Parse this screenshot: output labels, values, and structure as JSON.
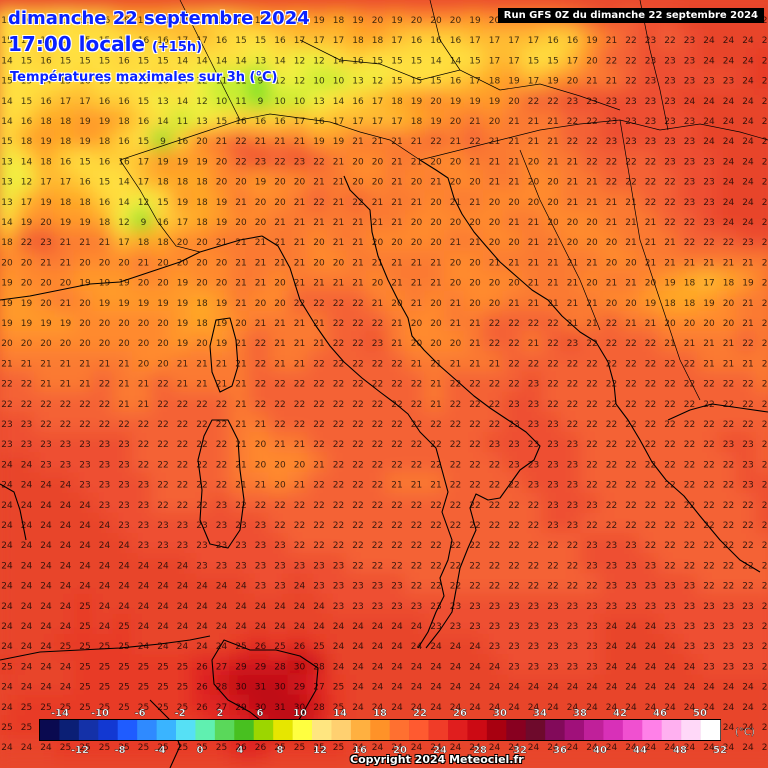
{
  "header": {
    "date_title": "dimanche 22 septembre 2024",
    "time_title": "17:00 locale",
    "lead_time": "(+15h)",
    "variable_title": "Températures maximales sur 3h (°C)",
    "run_info": "Run GFS 0Z du dimanche 22 septembre 2024"
  },
  "legend": {
    "unit": "(°C)",
    "top_labels": [
      "-14",
      "-10",
      "-6",
      "-2",
      "2",
      "6",
      "10",
      "14",
      "18",
      "22",
      "26",
      "30",
      "34",
      "38",
      "42",
      "46",
      "50"
    ],
    "bottom_labels": [
      "-12",
      "-8",
      "-4",
      "0",
      "4",
      "8",
      "12",
      "16",
      "20",
      "24",
      "28",
      "32",
      "36",
      "40",
      "44",
      "48",
      "52"
    ],
    "colors": [
      "#0a0a50",
      "#0b1f75",
      "#1431a8",
      "#1238d2",
      "#1f5cff",
      "#2f8aff",
      "#3ab4ff",
      "#56e0f5",
      "#60f0b0",
      "#5ad85a",
      "#48c020",
      "#9cd600",
      "#e6e600",
      "#ffff40",
      "#ffe680",
      "#ffd070",
      "#ffb040",
      "#ff9228",
      "#ff7030",
      "#ff5a30",
      "#f03c28",
      "#e01e1e",
      "#cc0a14",
      "#a80010",
      "#880020",
      "#6e0a2c",
      "#820a5a",
      "#a0107a",
      "#c0209a",
      "#d830b8",
      "#f050d0",
      "#ff80e8",
      "#ffb0f0",
      "#ffd8f8",
      "#ffffff"
    ]
  },
  "footer": {
    "copyright": "Copyright 2024 Meteociel.fr"
  },
  "grid": {
    "rows": [
      "15 16 16 15 16 16 18 18 18 17 17 16 17 18 19 18 19 18 19 20 19 20 20 20 19 20 20 20 20 21 22 23 22 23 23 24 24 24 24 24",
      "15 15 16 15 15 15 15 16 16 17 17 16 15 15 16 17 17 17 18 18 17 16 16 16 17 17 17 17 16 16 19 21 22 23 22 23 24 24 24 24",
      "14 15 16 15 15 15 16 15 15 14 14 14 14 13 14 12 12 14 16 15 15 15 14 14 15 17 17 15 15 17 20 22 22 23 23 23 24 24 24 25",
      "15 15 14 15 16 15 15 15 16 14 12 11 11 9 12 12 10 10 13 12 15 15 15 16 17 18 19 17 19 20 21 21 22 23 23 23 23 23 24 25",
      "14 15 16 17 17 16 16 15 13 14 12 10 11 9 10 10 13 14 16 17 18 19 20 19 19 19 20 22 22 23 23 23 23 23 23 24 24 24 24 24",
      "14 16 18 18 19 19 18 16 14 11 13 15 16 16 16 17 16 17 17 17 17 18 19 20 21 20 21 21 21 22 22 23 23 23 23 23 24 24 24 24",
      "15 18 19 18 19 18 16 15 9 16 20 21 22 21 21 21 19 19 21 21 21 21 22 21 22 21 21 21 21 22 22 23 23 23 23 23 24 24 24 24",
      "13 14 18 16 15 16 16 17 19 19 19 20 22 23 22 23 22 21 20 20 21 21 20 20 21 21 21 20 21 21 22 22 22 22 23 23 23 24 24 24",
      "13 12 17 17 16 15 14 17 18 18 18 20 20 19 20 20 21 21 20 20 21 20 21 20 20 21 21 20 20 21 21 22 22 22 22 23 23 24 24 24",
      "13 17 19 18 18 16 14 12 15 19 18 19 21 20 20 21 22 21 22 21 21 21 20 21 21 20 20 20 20 21 21 21 21 22 22 23 23 24 24 24",
      "14 19 20 19 19 18 12 9 16 17 18 19 20 20 21 21 21 21 21 21 21 20 20 20 20 20 21 21 20 20 20 21 21 21 22 22 23 24 24 24",
      "18 22 23 21 21 21 17 18 18 20 20 21 21 21 21 21 20 21 21 20 20 20 20 21 21 20 20 21 21 20 20 20 21 21 21 22 22 22 23 23",
      "20 20 21 21 20 20 20 21 20 20 20 20 21 21 21 21 20 20 21 21 21 21 21 20 20 21 21 21 21 21 21 20 20 21 21 21 21 21 21 21",
      "19 20 20 20 19 19 19 20 20 19 20 20 21 21 20 21 21 21 21 20 21 21 21 20 20 20 20 21 21 21 20 21 21 20 19 18 17 18 19 21",
      "19 19 20 21 20 19 19 19 19 19 18 19 21 20 20 22 22 22 22 21 20 21 20 21 20 20 21 21 21 21 21 20 20 19 18 18 19 20 21 21",
      "19 19 19 19 20 20 20 20 20 19 18 19 20 21 21 21 21 22 22 22 21 20 20 21 21 22 22 22 22 21 21 22 21 21 20 20 20 20 21 21",
      "20 20 20 20 20 20 20 20 20 19 20 19 21 22 21 21 21 22 22 23 21 20 20 20 21 22 22 21 22 23 22 22 22 22 21 21 21 21 22 21",
      "21 21 21 21 21 21 21 20 20 21 21 21 21 22 21 21 22 22 22 22 22 21 21 21 21 21 22 22 22 22 22 22 22 22 22 22 21 21 21 21",
      "22 22 21 21 21 22 21 21 22 21 21 21 21 22 22 22 22 22 22 22 22 22 21 22 22 22 22 23 22 22 22 22 22 22 22 22 22 22 22 21",
      "22 22 22 22 22 22 21 21 22 22 22 22 21 22 22 22 22 22 22 22 22 22 21 22 22 22 23 23 22 22 22 22 22 22 22 22 22 22 22 22",
      "23 23 22 22 22 22 22 22 22 22 22 22 21 21 22 22 22 22 22 22 22 22 22 22 22 22 23 23 23 22 22 22 22 22 22 22 22 22 22 22",
      "23 23 23 23 23 23 23 22 22 22 22 22 21 20 21 21 22 22 22 22 22 22 22 22 22 23 23 23 23 23 22 22 22 22 22 22 22 23 23 22",
      "24 24 23 23 23 23 23 22 22 22 22 22 21 20 20 20 21 22 22 22 22 22 22 22 22 22 23 23 23 23 22 22 22 22 22 22 22 22 23 22",
      "24 24 24 24 23 23 23 23 22 22 22 22 21 21 20 21 22 22 22 22 21 21 21 22 22 22 22 23 23 23 22 22 22 22 22 22 22 22 23 23",
      "24 24 24 24 24 23 23 23 22 22 22 23 22 22 22 22 22 22 22 22 22 22 22 22 22 22 22 22 23 23 23 22 22 22 22 22 22 22 22 23",
      "24 24 24 24 24 24 23 23 23 23 23 23 23 23 22 22 22 22 22 22 22 22 22 22 22 22 22 22 23 23 22 22 22 22 22 22 22 22 22 23",
      "24 24 24 24 24 24 24 23 23 23 23 23 23 23 23 22 22 22 22 22 22 22 22 22 22 22 22 22 22 22 23 23 23 22 22 22 22 22 22 22",
      "24 24 24 24 24 24 24 24 24 24 23 23 23 23 23 23 23 23 22 22 22 22 22 22 22 22 22 22 22 22 23 23 23 23 22 22 22 22 22 22",
      "24 24 24 24 24 24 24 24 24 24 24 24 24 23 23 24 23 23 23 23 23 22 22 22 22 22 22 22 22 22 22 23 23 23 23 23 22 22 22 22",
      "24 24 24 24 25 24 24 24 24 24 24 24 24 24 24 24 24 23 23 23 23 23 23 23 23 23 23 23 23 23 23 23 23 23 23 23 23 23 23 23",
      "24 24 24 24 25 24 25 24 24 24 24 24 24 24 24 24 24 24 24 24 24 24 23 23 23 23 23 23 23 23 23 24 24 24 23 23 23 23 23 23",
      "24 24 24 25 25 25 25 24 24 24 24 24 25 26 25 26 25 24 24 24 24 24 24 24 24 23 23 23 23 23 23 24 24 24 24 23 23 23 23 23",
      "25 24 24 24 25 25 25 25 25 25 26 27 29 29 28 30 28 24 24 24 24 24 24 24 24 24 23 23 23 23 23 24 24 24 24 24 23 23 23 23",
      "24 24 24 24 25 25 25 25 25 25 26 28 30 31 30 29 27 25 24 24 24 24 24 24 24 24 24 24 24 24 24 24 24 24 24 24 24 24 24 24",
      "24 25 25 25 25 25 25 25 25 25 26 27 29 30 31 30 28 25 24 24 24 24 24 24 24 24 24 24 24 24 24 24 24 24 24 24 24 24 24 24",
      "25 25 25 25 25 25 25 25 25 25 25 26 27 28 32 32 26 25 24 24 24 24 24 24 24 24 24 24 24 24 24 24 24 24 24 24 24 24 24 24",
      "24 24 24 25 25 25 25 25 25 25 25 25 26 26 25 25 25 25 24 24 24 24 24 24 24 24 24 24 24 24 24 24 24 24 24 24 24 24 24 24"
    ]
  }
}
